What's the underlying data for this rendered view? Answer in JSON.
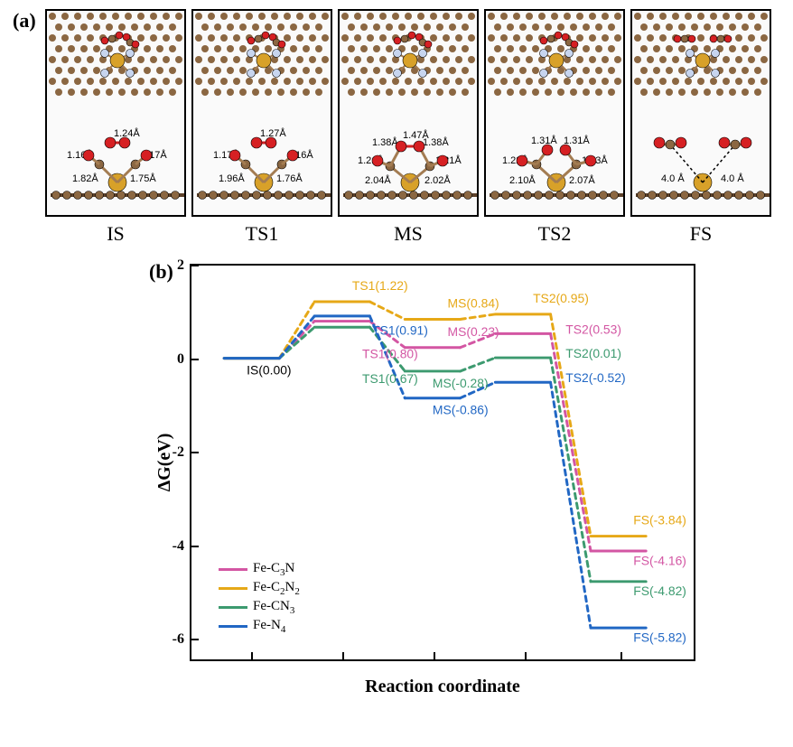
{
  "panelA": {
    "label": "(a)",
    "atom_colors": {
      "C": "#8b6742",
      "O": "#d62023",
      "Fe": "#d8a129",
      "N": "#c7d5ef",
      "bond": "#a37c52"
    },
    "structures": [
      {
        "id": "IS",
        "label": "IS",
        "bond_lengths": [
          "1.24Å",
          "1.16Å",
          "1.17Å",
          "1.82Å",
          "1.75Å"
        ]
      },
      {
        "id": "TS1",
        "label": "TS1",
        "bond_lengths": [
          "1.27Å",
          "1.17Å",
          "1.16Å",
          "1.96Å",
          "1.76Å"
        ]
      },
      {
        "id": "MS",
        "label": "MS",
        "bond_lengths": [
          "1.47Å",
          "1.38Å",
          "1.38Å",
          "1.21Å",
          "1.21Å",
          "2.04Å",
          "2.02Å"
        ]
      },
      {
        "id": "TS2",
        "label": "TS2",
        "bond_lengths": [
          "1.31Å",
          "1.31Å",
          "1.22Å",
          "1.23Å",
          "2.10Å",
          "2.07Å"
        ]
      },
      {
        "id": "FS",
        "label": "FS",
        "bond_lengths": [
          "4.0 Å",
          "4.0 Å"
        ]
      }
    ]
  },
  "panelB": {
    "label": "(b)",
    "chart_type": "free-energy-profile",
    "y_label": "ΔG(eV)",
    "x_label": "Reaction coordinate",
    "y_range": [
      -6.5,
      2
    ],
    "y_ticks": [
      2,
      0,
      -2,
      -4,
      -6
    ],
    "x_stages": [
      "IS",
      "TS1",
      "MS",
      "TS2",
      "FS"
    ],
    "stage_x_centers": [
      0.12,
      0.3,
      0.48,
      0.66,
      0.85
    ],
    "plateau_halfwidth": 0.055,
    "line_width": 3,
    "dash_pattern": "6 5",
    "background_color": "#ffffff",
    "series": [
      {
        "key": "Fe-C3N",
        "name_html": "Fe-C<sub>3</sub>N",
        "color": "#d356a3",
        "values": [
          0.0,
          0.8,
          0.23,
          0.53,
          -4.16
        ]
      },
      {
        "key": "Fe-C2N2",
        "name_html": "Fe-C<sub>2</sub>N<sub>2</sub>",
        "color": "#e6a817",
        "values": [
          0.0,
          1.22,
          0.84,
          0.95,
          -3.84
        ]
      },
      {
        "key": "Fe-CN3",
        "name_html": "Fe-CN<sub>3</sub>",
        "color": "#3c9a6f",
        "values": [
          0.0,
          0.67,
          -0.28,
          0.01,
          -4.82
        ]
      },
      {
        "key": "Fe-N4",
        "name_html": "Fe-N<sub>4</sub>",
        "color": "#2167c4",
        "values": [
          0.0,
          0.91,
          -0.86,
          -0.52,
          -5.82
        ]
      }
    ],
    "point_labels": [
      {
        "text": "IS(0.00)",
        "stage": 0,
        "y": 0.0,
        "color": "#000000",
        "dx": -0.01,
        "dy": 0.35
      },
      {
        "text": "TS1(1.22)",
        "stage": 1,
        "y": 1.22,
        "color": "#e6a817",
        "dx": 0.02,
        "dy": -0.25
      },
      {
        "text": "TS1(0.91)",
        "stage": 1,
        "y": 0.91,
        "color": "#2167c4",
        "dx": 0.06,
        "dy": 0.4
      },
      {
        "text": "TS1(0.80)",
        "stage": 1,
        "y": 0.8,
        "color": "#d356a3",
        "dx": 0.04,
        "dy": 0.8
      },
      {
        "text": "TS1(0.67)",
        "stage": 1,
        "y": 0.67,
        "color": "#3c9a6f",
        "dx": 0.04,
        "dy": 1.2
      },
      {
        "text": "MS(0.84)",
        "stage": 2,
        "y": 0.84,
        "color": "#e6a817",
        "dx": 0.03,
        "dy": -0.25
      },
      {
        "text": "MS(0.23)",
        "stage": 2,
        "y": 0.23,
        "color": "#d356a3",
        "dx": 0.03,
        "dy": -0.25
      },
      {
        "text": "MS(-0.28)",
        "stage": 2,
        "y": -0.28,
        "color": "#3c9a6f",
        "dx": 0.0,
        "dy": 0.35
      },
      {
        "text": "MS(-0.86)",
        "stage": 2,
        "y": -0.86,
        "color": "#2167c4",
        "dx": 0.0,
        "dy": 0.35
      },
      {
        "text": "TS2(0.95)",
        "stage": 3,
        "y": 0.95,
        "color": "#e6a817",
        "dx": 0.02,
        "dy": -0.25
      },
      {
        "text": "TS2(0.53)",
        "stage": 3,
        "y": 0.53,
        "color": "#d356a3",
        "dx": 0.085,
        "dy": 0.0
      },
      {
        "text": "TS2(0.01)",
        "stage": 3,
        "y": 0.01,
        "color": "#3c9a6f",
        "dx": 0.085,
        "dy": 0.0
      },
      {
        "text": "TS2(-0.52)",
        "stage": 3,
        "y": -0.52,
        "color": "#2167c4",
        "dx": 0.085,
        "dy": 0.0
      },
      {
        "text": "FS(-3.84)",
        "stage": 4,
        "y": -3.84,
        "color": "#e6a817",
        "dx": 0.03,
        "dy": -0.25
      },
      {
        "text": "FS(-4.16)",
        "stage": 4,
        "y": -4.16,
        "color": "#d356a3",
        "dx": 0.03,
        "dy": 0.3
      },
      {
        "text": "FS(-4.82)",
        "stage": 4,
        "y": -4.82,
        "color": "#3c9a6f",
        "dx": 0.03,
        "dy": 0.3
      },
      {
        "text": "FS(-5.82)",
        "stage": 4,
        "y": -5.82,
        "color": "#2167c4",
        "dx": 0.03,
        "dy": 0.3
      }
    ]
  }
}
